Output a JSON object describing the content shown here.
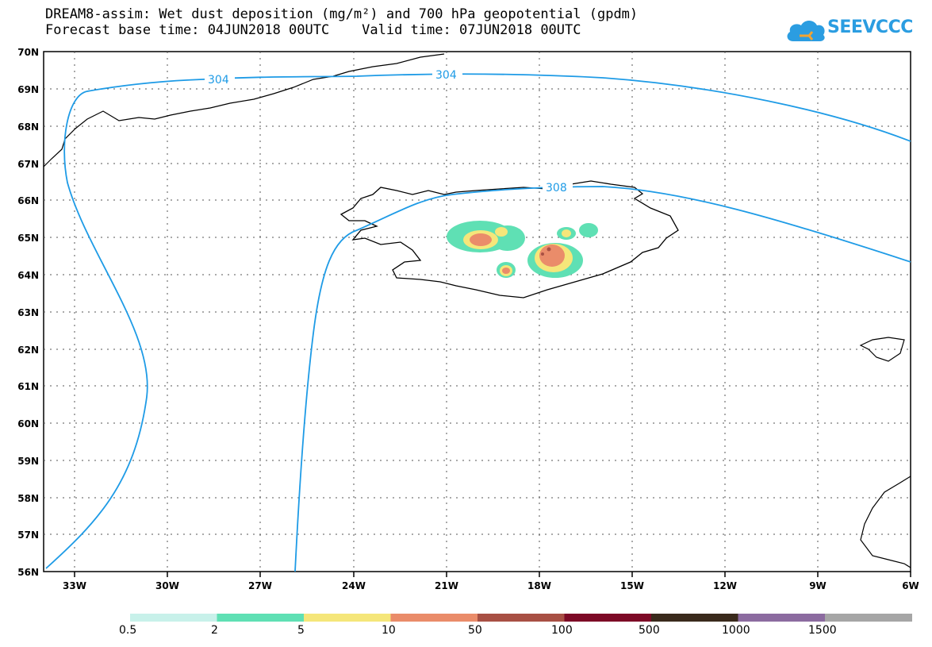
{
  "header": {
    "title_line1": "DREAM8-assim: Wet dust deposition (mg/m²) and 700 hPa geopotential (gpdm)",
    "title_line2": "Forecast base time: 04JUN2018 00UTC    Valid time: 07JUN2018 00UTC"
  },
  "logo": {
    "text": "SEEVCCC",
    "icon": "cloud-icon",
    "color": "#2b9de1"
  },
  "axes": {
    "lat_labels": [
      "70N",
      "69N",
      "68N",
      "67N",
      "66N",
      "65N",
      "64N",
      "63N",
      "62N",
      "61N",
      "60N",
      "59N",
      "58N",
      "57N",
      "56N"
    ],
    "lon_labels": [
      "33W",
      "30W",
      "27W",
      "24W",
      "21W",
      "18W",
      "15W",
      "12W",
      "9W",
      "6W"
    ]
  },
  "contours": {
    "color": "#1e9be6",
    "labels": [
      "304",
      "304",
      "308"
    ]
  },
  "legend": {
    "labels": [
      "0.5",
      "2",
      "5",
      "10",
      "50",
      "100",
      "500",
      "1000",
      "1500"
    ],
    "colors": [
      "#c8f1ea",
      "#5fe0b4",
      "#f5e67a",
      "#ea8c6a",
      "#a85044",
      "#7d0a26",
      "#3a2a1c",
      "#8c6ba0",
      "#a6a6a6"
    ]
  }
}
